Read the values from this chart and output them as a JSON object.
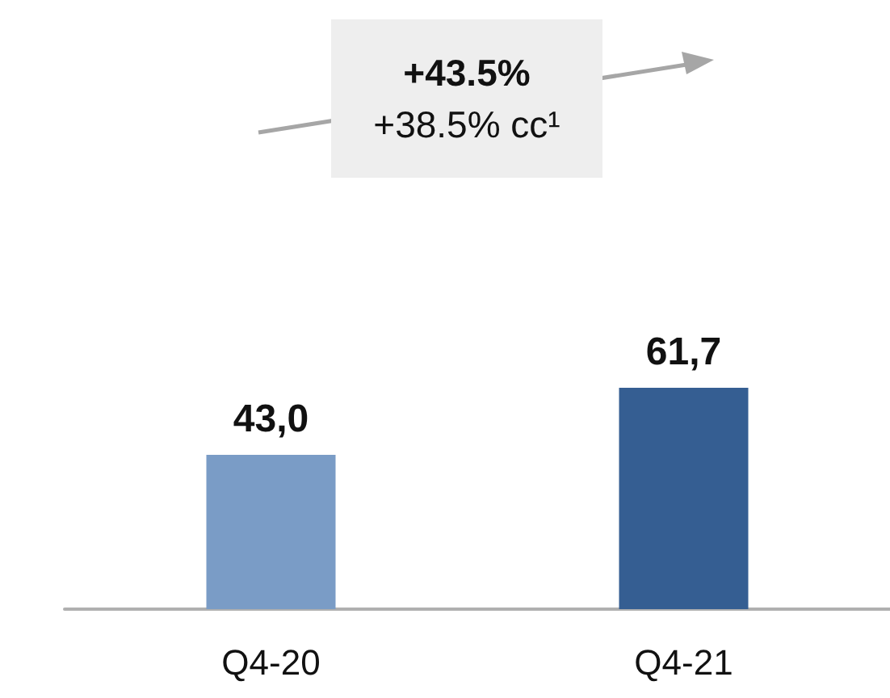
{
  "chart_data": {
    "type": "bar",
    "categories": [
      "Q4-20",
      "Q4-21"
    ],
    "values": [
      43.0,
      61.7
    ],
    "colors": [
      "#7a9cc6",
      "#355e92"
    ],
    "value_labels": [
      "43,0",
      "61,7"
    ],
    "annotations": [
      "+43.5%",
      "+38.5% cc¹"
    ]
  }
}
